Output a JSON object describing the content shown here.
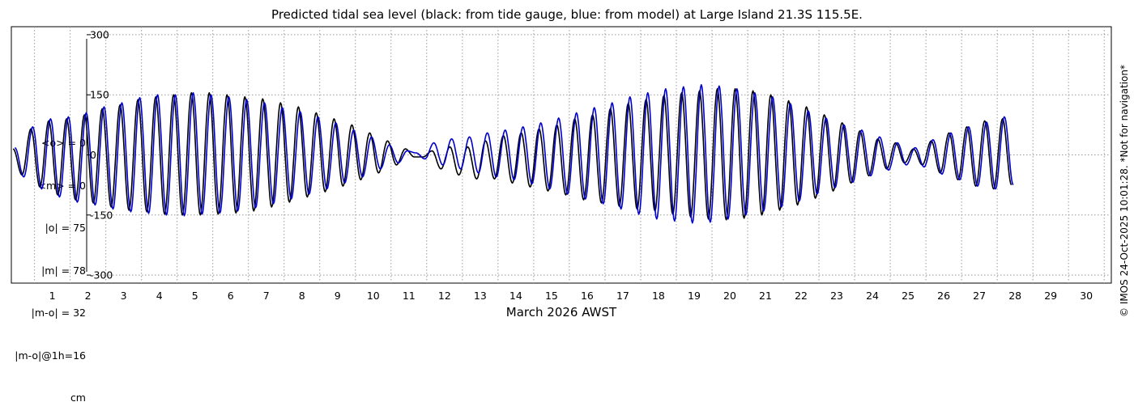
{
  "stats_lines": [
    "<o> = 0",
    "<m> = 0",
    "|o| = 75",
    "|m| = 78",
    "|m-o| = 32",
    "|m-o|@1h=16",
    "cm"
  ],
  "copyright": "© IMOS 24-Oct-2025 10:01:28. *Not for navigation*",
  "colors": {
    "observed": "#000000",
    "model": "#0000cc",
    "grid": "#9a9a9a",
    "axis": "#000000"
  },
  "chart_data": {
    "type": "line",
    "title": "Predicted tidal sea level (black: from tide gauge, blue: from model) at Large Island 21.3S 115.5E.",
    "xlabel": "March 2026 AWST",
    "ylabel": "",
    "units": "cm",
    "xlim": [
      0.35,
      31.2
    ],
    "ylim": [
      -320,
      320
    ],
    "yticks": [
      -300,
      -150,
      0,
      150,
      300
    ],
    "ytick_labels": [
      "-300",
      "-150",
      "0",
      "150",
      "300"
    ],
    "xticks": [
      1,
      2,
      3,
      4,
      5,
      6,
      7,
      8,
      9,
      10,
      11,
      12,
      13,
      14,
      15,
      16,
      17,
      18,
      19,
      20,
      21,
      22,
      23,
      24,
      25,
      26,
      27,
      28,
      29,
      30
    ],
    "xtick_labels": [
      "1",
      "2",
      "3",
      "4",
      "5",
      "6",
      "7",
      "8",
      "9",
      "10",
      "11",
      "12",
      "13",
      "14",
      "15",
      "16",
      "17",
      "18",
      "19",
      "20",
      "21",
      "22",
      "23",
      "24",
      "25",
      "26",
      "27",
      "28",
      "29",
      "30"
    ],
    "grid": true,
    "sampling_hours": 6,
    "series": [
      {
        "name": "black: from tide gauge",
        "color": "#000000",
        "x_start_day": 0.4,
        "values": [
          15,
          -50,
          65,
          -80,
          85,
          -100,
          90,
          -112,
          100,
          -120,
          115,
          -130,
          125,
          -138,
          138,
          -142,
          145,
          -148,
          150,
          -150,
          155,
          -150,
          155,
          -148,
          150,
          -145,
          145,
          -140,
          140,
          -130,
          130,
          -118,
          120,
          -105,
          105,
          -92,
          90,
          -78,
          75,
          -62,
          55,
          -45,
          35,
          -25,
          15,
          -5,
          -5,
          10,
          -35,
          20,
          -50,
          20,
          -60,
          35,
          -60,
          48,
          -70,
          55,
          -80,
          65,
          -90,
          75,
          -100,
          90,
          -112,
          100,
          -120,
          115,
          -128,
          128,
          -135,
          138,
          -140,
          148,
          -148,
          155,
          -155,
          160,
          -160,
          165,
          -162,
          165,
          -158,
          160,
          -150,
          150,
          -138,
          135,
          -125,
          120,
          -108,
          100,
          -90,
          80,
          -70,
          60,
          -52,
          40,
          -35,
          30,
          -20,
          15,
          -25,
          35,
          -45,
          55,
          -62,
          70,
          -78,
          85,
          -85,
          90,
          -75
        ]
      },
      {
        "name": "blue: from model",
        "color": "#0000cc",
        "x_start_day": 0.45,
        "values": [
          18,
          -55,
          70,
          -85,
          90,
          -105,
          95,
          -118,
          105,
          -125,
          120,
          -135,
          130,
          -142,
          143,
          -146,
          150,
          -150,
          150,
          -152,
          155,
          -148,
          150,
          -145,
          145,
          -140,
          138,
          -132,
          130,
          -122,
          118,
          -110,
          108,
          -98,
          95,
          -85,
          80,
          -70,
          62,
          -55,
          45,
          -35,
          25,
          -20,
          10,
          5,
          -10,
          30,
          -25,
          40,
          -35,
          45,
          -45,
          55,
          -55,
          62,
          -62,
          70,
          -72,
          80,
          -85,
          92,
          -98,
          105,
          -110,
          118,
          -122,
          130,
          -135,
          145,
          -148,
          155,
          -160,
          165,
          -165,
          170,
          -170,
          175,
          -168,
          172,
          -160,
          165,
          -150,
          155,
          -140,
          145,
          -130,
          128,
          -115,
          110,
          -98,
          92,
          -82,
          75,
          -68,
          62,
          -52,
          45,
          -38,
          30,
          -25,
          18,
          -30,
          38,
          -48,
          55,
          -62,
          70,
          -78,
          82,
          -85,
          95,
          -75
        ]
      }
    ]
  }
}
